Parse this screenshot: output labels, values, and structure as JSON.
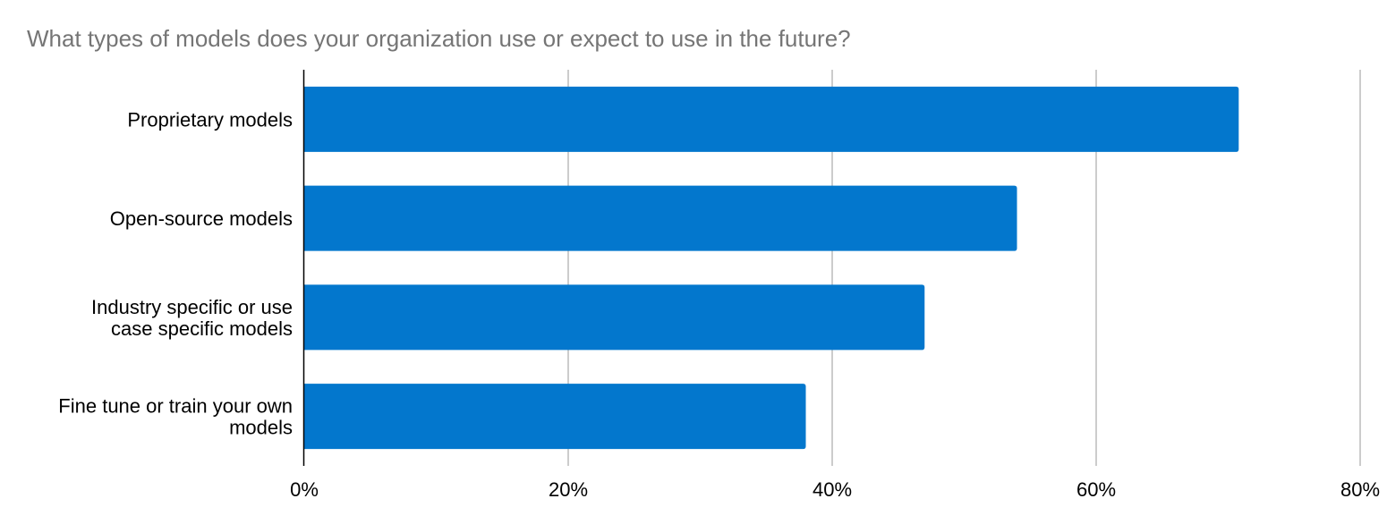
{
  "chart_data": {
    "type": "bar",
    "orientation": "horizontal",
    "title": "What types of models does your organization use or expect to use in the future?",
    "categories": [
      [
        "Proprietary models"
      ],
      [
        "Open-source models"
      ],
      [
        "Industry specific or use",
        "case specific models"
      ],
      [
        "Fine tune or train your own",
        "models"
      ]
    ],
    "values": [
      70.8,
      54.0,
      47.0,
      38.0
    ],
    "value_unit": "%",
    "xlim": [
      0,
      80
    ],
    "x_ticks": [
      "0%",
      "20%",
      "40%",
      "60%",
      "80%"
    ],
    "xlabel": "",
    "ylabel": "",
    "grid": true,
    "legend": "none",
    "bar_color": "#0377cd"
  }
}
